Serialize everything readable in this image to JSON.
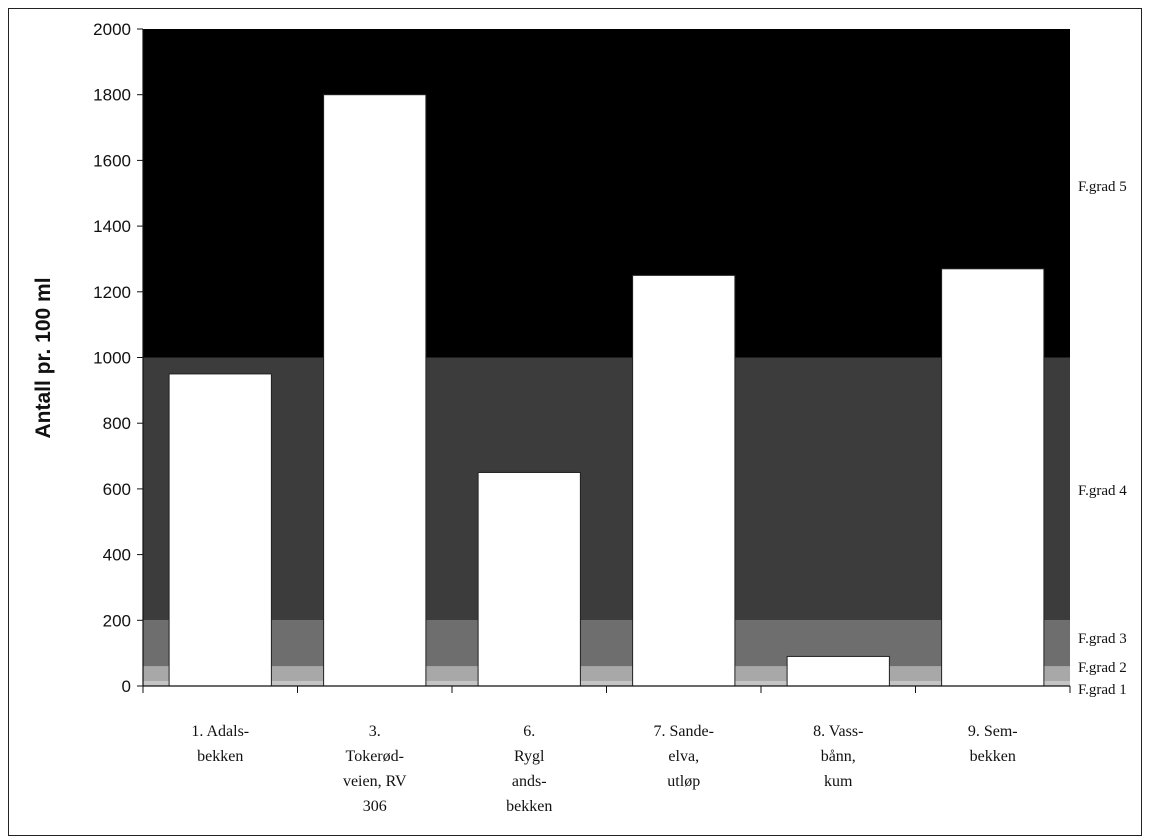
{
  "chart_data": {
    "type": "bar",
    "ylabel": "Antall pr. 100 ml",
    "ylim": [
      0,
      2000
    ],
    "yticks": [
      0,
      200,
      400,
      600,
      800,
      1000,
      1200,
      1400,
      1600,
      1800,
      2000
    ],
    "categories": [
      [
        "1. Adals-",
        "bekken"
      ],
      [
        "3.",
        "Tokerød-",
        "veien, RV",
        "306"
      ],
      [
        "6.",
        "Rygl",
        "ands-",
        "bekken"
      ],
      [
        "7. Sande-",
        "elva,",
        "utløp"
      ],
      [
        "8. Vass-",
        "bånn,",
        "kum"
      ],
      [
        "9. Sem-",
        "bekken"
      ]
    ],
    "values": [
      950,
      1800,
      650,
      1250,
      90,
      1270
    ],
    "bands": [
      {
        "label": "F.grad 1",
        "from": 0,
        "to": 15,
        "color": "#c4c4c4"
      },
      {
        "label": "F.grad 2",
        "from": 15,
        "to": 60,
        "color": "#a8a8a8"
      },
      {
        "label": "F.grad 3",
        "from": 60,
        "to": 200,
        "color": "#6e6e6e"
      },
      {
        "label": "F.grad 4",
        "from": 200,
        "to": 1000,
        "color": "#3c3c3c"
      },
      {
        "label": "F.grad 5",
        "from": 1000,
        "to": 2000,
        "color": "#000000"
      }
    ],
    "bar_color": "#ffffff",
    "grid": false
  }
}
